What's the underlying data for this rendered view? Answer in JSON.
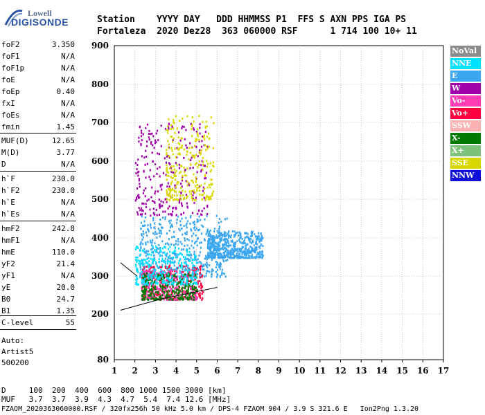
{
  "logo": {
    "line1": "Lowell",
    "line2": "DIGISONDE"
  },
  "header": {
    "row1": "Station    YYYY DAY   DDD HHMMSS P1  FFS S AXN PPS IGA PS",
    "row2": "Fortaleza  2020 Dez28  363 060000 RSF      1 714 100 10+ 11"
  },
  "params": [
    {
      "k": "foF2",
      "v": "3.350"
    },
    {
      "k": "foF1",
      "v": "N/A"
    },
    {
      "k": "foF1p",
      "v": "N/A"
    },
    {
      "k": "foE",
      "v": "N/A"
    },
    {
      "k": "foEp",
      "v": "0.40"
    },
    {
      "k": "fxI",
      "v": "N/A"
    },
    {
      "k": "foEs",
      "v": "N/A"
    },
    {
      "k": "fmin",
      "v": "1.45"
    },
    {
      "k": "MUF(D)",
      "v": "12.65"
    },
    {
      "k": "M(D)",
      "v": "3.77"
    },
    {
      "k": "D",
      "v": "N/A"
    },
    {
      "k": "h`F",
      "v": "230.0"
    },
    {
      "k": "h`F2",
      "v": "230.0"
    },
    {
      "k": "h`E",
      "v": "N/A"
    },
    {
      "k": "h`Es",
      "v": "N/A"
    },
    {
      "k": "hmF2",
      "v": "242.8"
    },
    {
      "k": "hmF1",
      "v": "N/A"
    },
    {
      "k": "hmE",
      "v": "110.0"
    },
    {
      "k": "yF2",
      "v": "21.4"
    },
    {
      "k": "yF1",
      "v": "N/A"
    },
    {
      "k": "yE",
      "v": "20.0"
    },
    {
      "k": "B0",
      "v": "24.7"
    },
    {
      "k": "B1",
      "v": "1.35"
    },
    {
      "k": "C-level",
      "v": "55"
    }
  ],
  "auto": {
    "l1": "Auto:",
    "l2": "Artist5",
    "l3": "500200"
  },
  "legend": [
    {
      "label": "NoVal",
      "color": "#8c8c8c"
    },
    {
      "label": "NNE",
      "color": "#00e0ff"
    },
    {
      "label": "E",
      "color": "#3aa6f0"
    },
    {
      "label": "W",
      "color": "#a000a8"
    },
    {
      "label": "Vo-",
      "color": "#ff3cb4"
    },
    {
      "label": "Vo+",
      "color": "#ff0040"
    },
    {
      "label": "SSW",
      "color": "#f8b0b0"
    },
    {
      "label": "X-",
      "color": "#007a00"
    },
    {
      "label": "X+",
      "color": "#7cc07c"
    },
    {
      "label": "SSE",
      "color": "#d8d800"
    },
    {
      "label": "NNW",
      "color": "#1010d8"
    }
  ],
  "bottom": {
    "row1": "D     100  200  400  600  800 1000 1500 3000 [km]",
    "row2": "MUF   3.7  3.7  3.9  4.3  4.7  5.4  7.4 12.6 [MHz]"
  },
  "footer": "FZAOM_2020363060000.RSF / 320fx256h 50 kHz 5.0 km / DPS-4 FZAOM 904 / 3.9 S 321.6 E   Ion2Png 1.3.20",
  "chart_data": {
    "type": "scatter",
    "x_ticks": [
      "1",
      "2",
      "3",
      "4",
      "5",
      "6",
      "7",
      "8",
      "9",
      "10",
      "11",
      "12",
      "13",
      "14",
      "15",
      "16",
      "17"
    ],
    "y_ticks": [
      "80",
      "200",
      "300",
      "400",
      "500",
      "600",
      "700",
      "800",
      "900"
    ],
    "xlim": [
      1,
      17
    ],
    "ylim": [
      80,
      900
    ],
    "grid": true,
    "legend_position": "right",
    "clusters": [
      {
        "name": "E",
        "x": [
          2.2,
          6.5
        ],
        "y": [
          300,
          460
        ]
      },
      {
        "name": "E",
        "x": [
          5.5,
          8.2
        ],
        "y": [
          350,
          420
        ]
      },
      {
        "name": "Vo+",
        "x": [
          2.3,
          5.3
        ],
        "y": [
          240,
          330
        ]
      },
      {
        "name": "Vo-",
        "x": [
          2.3,
          5.0
        ],
        "y": [
          240,
          320
        ]
      },
      {
        "name": "W",
        "x": [
          2.0,
          5.5
        ],
        "y": [
          460,
          700
        ]
      },
      {
        "name": "SSE",
        "x": [
          3.5,
          5.8
        ],
        "y": [
          500,
          720
        ]
      },
      {
        "name": "X-",
        "x": [
          2.3,
          5.0
        ],
        "y": [
          240,
          310
        ]
      },
      {
        "name": "NNE",
        "x": [
          2.0,
          5.0
        ],
        "y": [
          280,
          380
        ]
      }
    ],
    "profile_line": {
      "x": [
        1.3,
        3.3,
        6.0
      ],
      "y": [
        210,
        240,
        270
      ]
    },
    "profile_line2": {
      "x": [
        1.3,
        2.1
      ],
      "y": [
        335,
        300
      ]
    }
  }
}
